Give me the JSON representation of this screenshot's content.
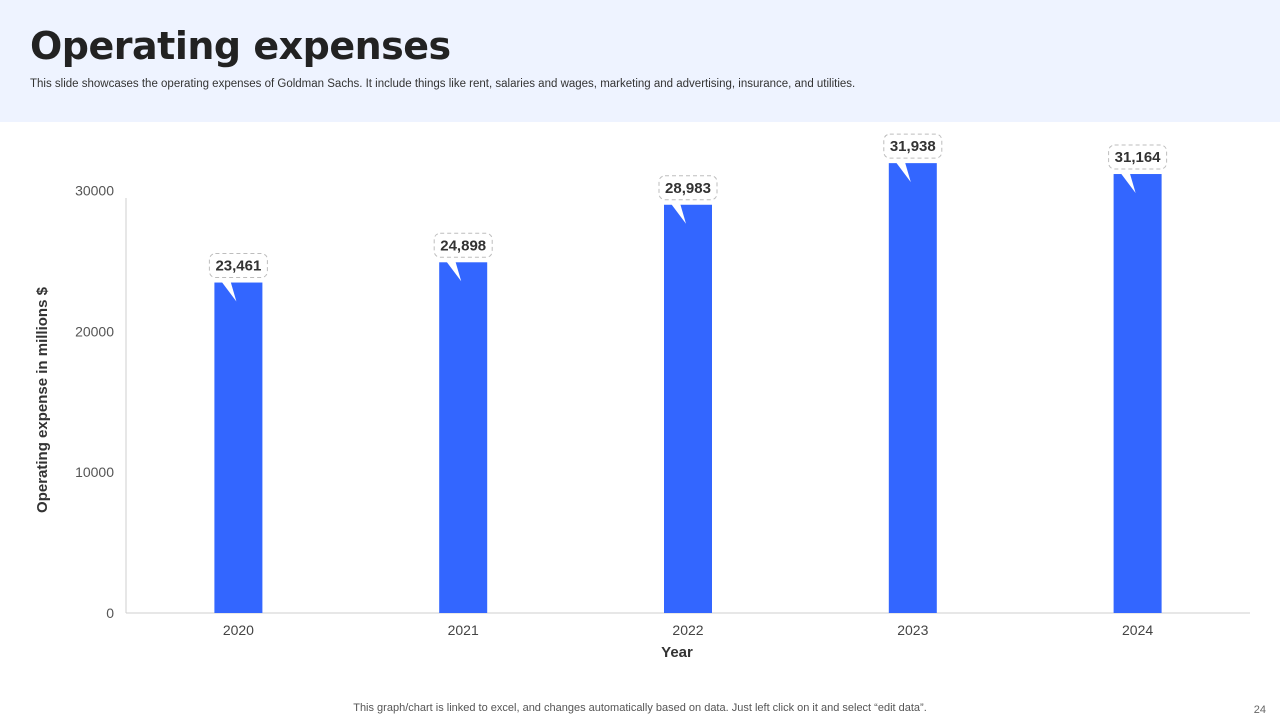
{
  "slide": {
    "title": "Operating expenses",
    "subtitle": "This slide showcases the operating expenses of Goldman Sachs. It include things like rent, salaries and wages, marketing and advertising, insurance, and utilities.",
    "footer_note": "This graph/chart is linked to excel, and changes automatically based on data. Just left click on it and select “edit data”.",
    "page_number": "24"
  },
  "colors": {
    "header_band": "#eef3ff",
    "bar": "#3366ff",
    "axis": "#cfcfcf"
  },
  "chart_data": {
    "type": "bar",
    "categories": [
      "2020",
      "2021",
      "2022",
      "2023",
      "2024"
    ],
    "values": [
      23461,
      24898,
      28983,
      31938,
      31164
    ],
    "data_labels": [
      "23,461",
      "24,898",
      "28,983",
      "31,938",
      "31,164"
    ],
    "xlabel": "Year",
    "ylabel": "Operating expense in millions $",
    "ylim": [
      0,
      35000
    ],
    "yticks": [
      0,
      10000,
      20000,
      30000
    ],
    "ytick_labels": [
      "0",
      "10000",
      "20000",
      "30000"
    ],
    "grid": false,
    "legend": "none"
  }
}
